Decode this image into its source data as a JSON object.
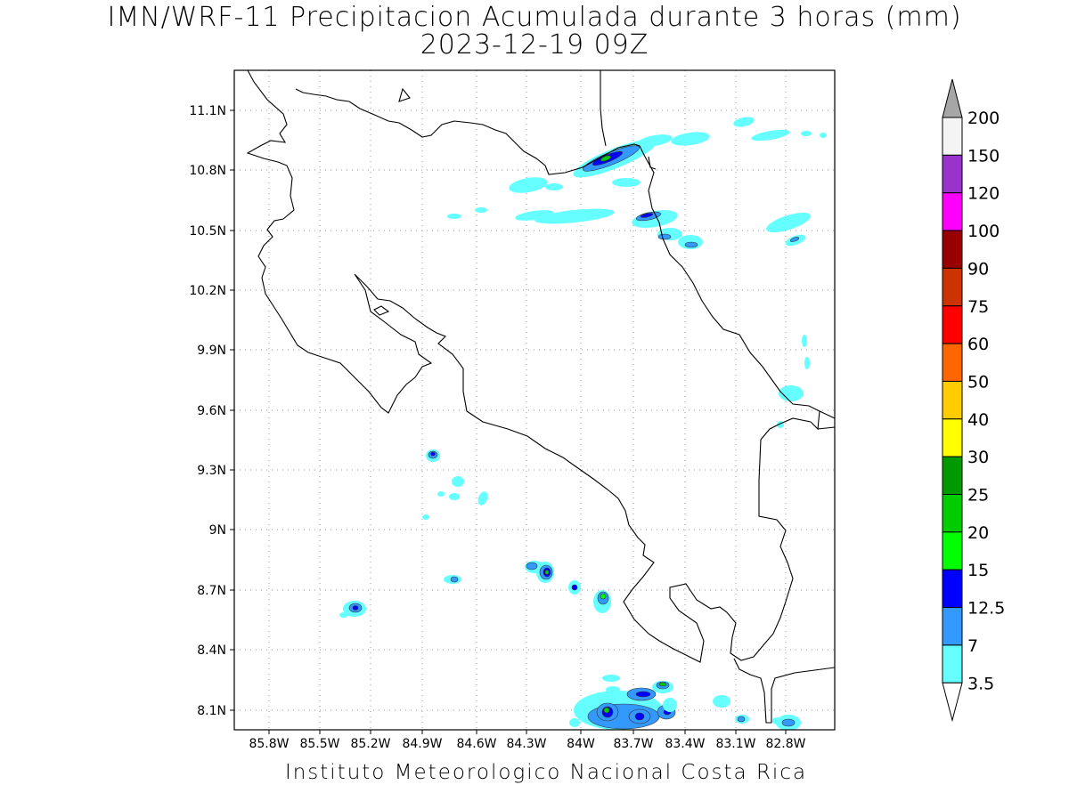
{
  "title": "IMN/WRF-11 Precipitacion Acumulada durante 3 horas (mm)",
  "subtitle": "2023-12-19 09Z",
  "credit": "Instituto Meteorologico Nacional Costa Rica",
  "map": {
    "lat_labels": [
      "11.1N",
      "10.8N",
      "10.5N",
      "10.2N",
      "9.9N",
      "9.6N",
      "9.3N",
      "9N",
      "8.7N",
      "8.4N",
      "8.1N"
    ],
    "lon_labels": [
      "85.8W",
      "85.5W",
      "85.2W",
      "84.9W",
      "84.6W",
      "84.3W",
      "84W",
      "83.7W",
      "83.4W",
      "83.1W",
      "82.8W"
    ],
    "lat_range": [
      8.0,
      11.2
    ],
    "lon_range": [
      -85.97,
      -82.97
    ]
  },
  "legend": {
    "labels": [
      "200",
      "150",
      "120",
      "100",
      "90",
      "75",
      "60",
      "50",
      "40",
      "30",
      "25",
      "20",
      "15",
      "12.5",
      "7",
      "3.5"
    ],
    "colors": {
      "c3_5": "#66ffff",
      "c7": "#3399ff",
      "c12_5": "#0000ff",
      "c15": "#00ff00",
      "c20": "#00cc00",
      "c25": "#009900",
      "c30": "#ffff00",
      "c40": "#ffcc00",
      "c50": "#ff6600",
      "c60": "#ff0000",
      "c75": "#cc3300",
      "c90": "#990000",
      "c100": "#ff00ff",
      "c120": "#9933cc",
      "c150": "#f4f4f4",
      "c200": "#a6a6a6"
    }
  }
}
